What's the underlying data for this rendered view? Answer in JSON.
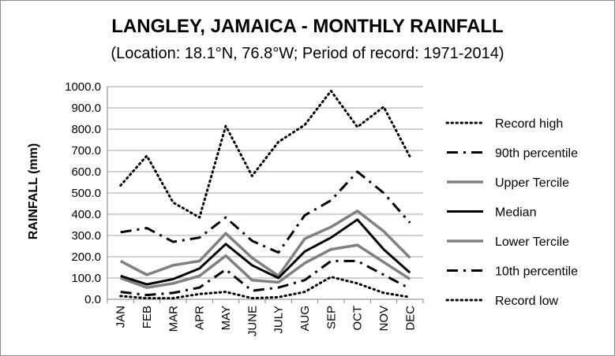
{
  "chart_data": {
    "type": "line",
    "title": "LANGLEY, JAMAICA - MONTHLY RAINFALL",
    "subtitle": "(Location: 18.1°N, 76.8°W; Period of record: 1971-2014)",
    "xlabel": "",
    "ylabel": "RAINFALL (mm)",
    "ylim": [
      0,
      1000
    ],
    "yticks": [
      "0.0",
      "100.0",
      "200.0",
      "300.0",
      "400.0",
      "500.0",
      "600.0",
      "700.0",
      "800.0",
      "900.0",
      "1000.0"
    ],
    "categories": [
      "JAN",
      "FEB",
      "MAR",
      "APR",
      "MAY",
      "JUNE",
      "JULY",
      "AUG",
      "SEP",
      "OCT",
      "NOV",
      "DEC"
    ],
    "grid": true,
    "legend_position": "right",
    "series": [
      {
        "name": "Record high",
        "style": "dotted",
        "color": "#000000",
        "values": [
          535,
          675,
          455,
          385,
          815,
          580,
          740,
          820,
          980,
          810,
          905,
          670
        ]
      },
      {
        "name": "90th percentile",
        "style": "dashdot",
        "color": "#000000",
        "values": [
          315,
          335,
          270,
          290,
          385,
          275,
          220,
          395,
          465,
          600,
          500,
          360
        ]
      },
      {
        "name": "Upper Tercile",
        "style": "solid",
        "color": "#808080",
        "values": [
          180,
          115,
          160,
          180,
          310,
          195,
          110,
          285,
          340,
          415,
          320,
          195
        ]
      },
      {
        "name": "Median",
        "style": "solid-bold",
        "color": "#000000",
        "values": [
          110,
          70,
          95,
          145,
          260,
          160,
          100,
          225,
          290,
          375,
          235,
          125
        ]
      },
      {
        "name": "Lower Tercile",
        "style": "solid",
        "color": "#808080",
        "values": [
          100,
          55,
          75,
          110,
          205,
          90,
          80,
          170,
          235,
          255,
          175,
          95
        ]
      },
      {
        "name": "10th percentile",
        "style": "dashdot",
        "color": "#000000",
        "values": [
          35,
          20,
          30,
          55,
          140,
          40,
          55,
          90,
          180,
          180,
          115,
          50
        ]
      },
      {
        "name": "Record low",
        "style": "dotted",
        "color": "#000000",
        "values": [
          15,
          5,
          5,
          25,
          35,
          5,
          10,
          35,
          105,
          75,
          30,
          10
        ]
      }
    ]
  }
}
